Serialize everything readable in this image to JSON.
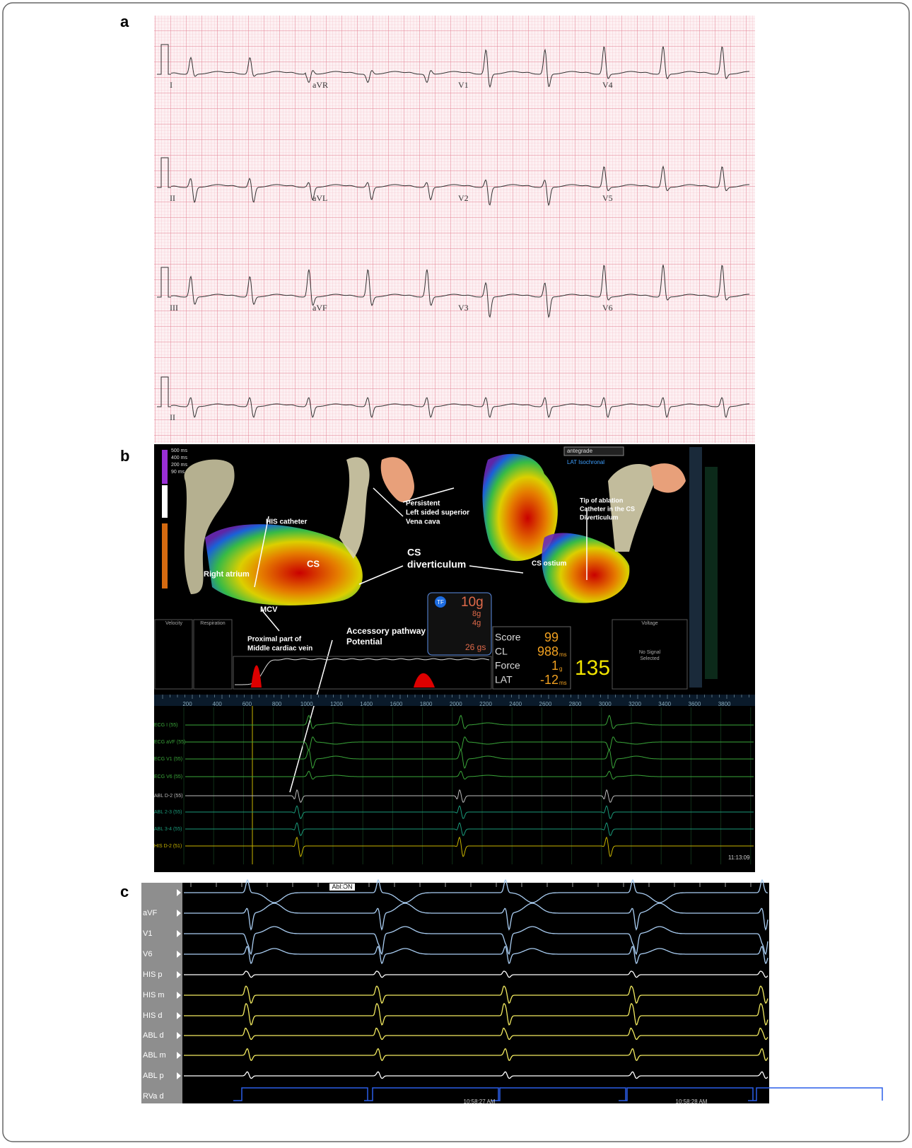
{
  "panel_a": {
    "label": "a",
    "leads": [
      [
        "I",
        "aVR",
        "V1",
        "V4"
      ],
      [
        "II",
        "aVL",
        "V2",
        "V5"
      ],
      [
        "III",
        "aVF",
        "V3",
        "V6"
      ],
      [
        "II"
      ]
    ]
  },
  "panel_b": {
    "label": "b",
    "scale": [
      "500 ms",
      "400 ms",
      "200 ms",
      "90 ms"
    ],
    "annotations": [
      [
        "HIS catheter"
      ],
      [
        "Right atrium"
      ],
      [
        "CS"
      ],
      [
        "MCV"
      ],
      [
        "Proximal part of",
        "Middle cardiac vein"
      ],
      [
        "Persistent",
        "Left sided superior",
        "Vena cava"
      ],
      [
        "CS",
        "diverticulum"
      ],
      [
        "Tip of ablation",
        "Catheter in the CS",
        "Diverticulum"
      ],
      [
        "CS ostium"
      ],
      [
        "Accessory pathway",
        "Potential"
      ]
    ],
    "map_mode": "antegrade",
    "map_type": "LAT Isochronal",
    "force_widget": {
      "badge": "TF",
      "total": "10g",
      "lines": [
        "8g",
        "4g"
      ],
      "integral": "26 gs"
    },
    "readout": {
      "rows": [
        [
          "Score",
          "99",
          ""
        ],
        [
          "CL",
          "988",
          "ms"
        ],
        [
          "Force",
          "1",
          "g"
        ],
        [
          "LAT",
          "-12",
          "ms"
        ]
      ],
      "rate": "135"
    },
    "boxes": [
      "Velocity",
      "Respiration",
      "Voltage"
    ],
    "no_signal": [
      "No Signal",
      "Selected"
    ],
    "timeline": [
      "200",
      "400",
      "600",
      "800",
      "1000",
      "1200",
      "1400",
      "1600",
      "1800",
      "2000",
      "2200",
      "2400",
      "2600",
      "2800",
      "3000",
      "3200",
      "3400",
      "3600",
      "3800"
    ],
    "channels": [
      "ECG I (55)",
      "ECG aVF (55)",
      "ECG V1 (55)",
      "ECG V6 (55)",
      "ABL D-2 (55)",
      "ABL 2-3 (55)",
      "ABL 3-4 (55)",
      "HIS D-2 (51)"
    ],
    "clock": "11:13:09"
  },
  "panel_c": {
    "label": "c",
    "flag": "Abl:ON",
    "channels": [
      "aVF",
      "V1",
      "V6",
      "HIS p",
      "HIS m",
      "HIS d",
      "ABL d",
      "ABL m",
      "ABL p",
      "RVa d"
    ],
    "times": [
      "10:58:27 AM",
      "10:58:28 AM"
    ]
  }
}
